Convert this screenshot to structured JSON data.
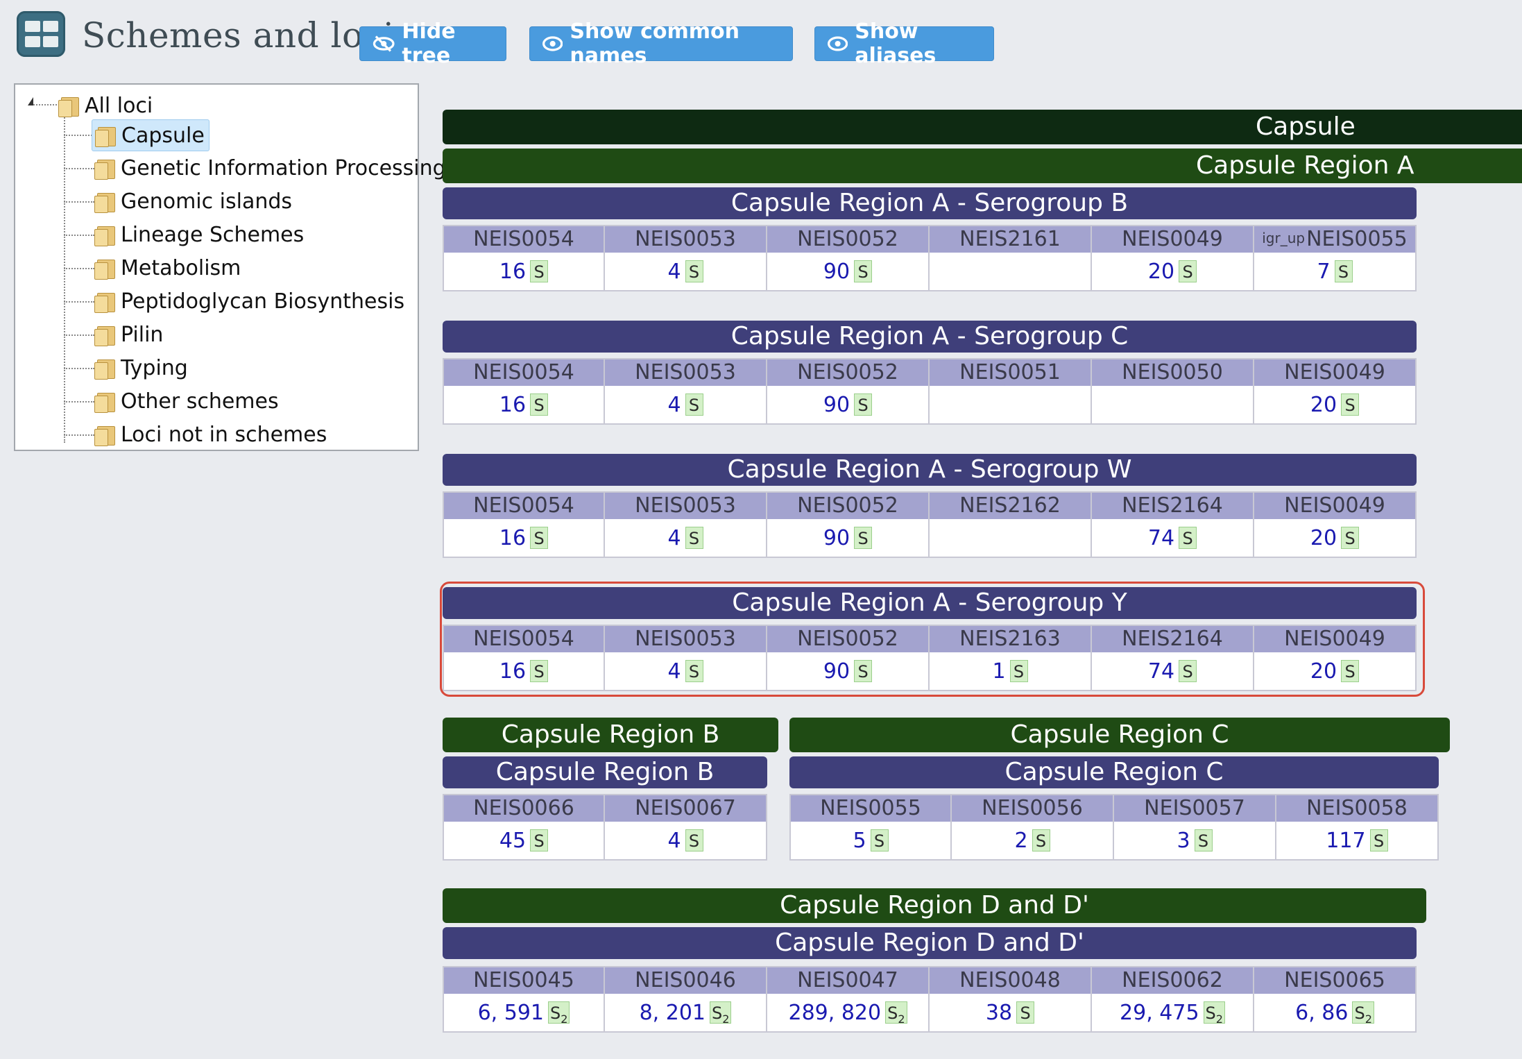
{
  "header": {
    "title": "Schemes and loci",
    "buttons": {
      "hide_tree": "Hide tree",
      "show_common_names": "Show common names",
      "show_aliases": "Show aliases"
    }
  },
  "tree": {
    "root": "All loci",
    "items": [
      {
        "label": "Capsule",
        "selected": true
      },
      {
        "label": "Genetic Information Processing"
      },
      {
        "label": "Genomic islands"
      },
      {
        "label": "Lineage Schemes"
      },
      {
        "label": "Metabolism"
      },
      {
        "label": "Peptidoglycan Biosynthesis"
      },
      {
        "label": "Pilin"
      },
      {
        "label": "Typing"
      },
      {
        "label": "Other schemes"
      },
      {
        "label": "Loci not in schemes"
      }
    ]
  },
  "colors": {
    "dark_bar": "#0e2a12",
    "group_bar": "#1f4b14",
    "scheme_bar": "#3f3f7a",
    "locus_header": "#a3a3cf",
    "link": "#1a1ab0",
    "badge": "#d4f0c8",
    "highlight": "#d84a3b"
  },
  "main": {
    "top_title": "Capsule",
    "region_a": {
      "title": "Capsule Region A",
      "schemes": [
        {
          "title": "Capsule Region A - Serogroup B",
          "loci": [
            {
              "name": "NEIS0054",
              "value": "16",
              "badge": "S"
            },
            {
              "name": "NEIS0053",
              "value": "4",
              "badge": "S"
            },
            {
              "name": "NEIS0052",
              "value": "90",
              "badge": "S"
            },
            {
              "name": "NEIS2161",
              "value": "",
              "badge": ""
            },
            {
              "name": "NEIS0049",
              "value": "20",
              "badge": "S"
            },
            {
              "name": "NEIS0055",
              "prefix": "igr_up",
              "value": "7",
              "badge": "S"
            }
          ]
        },
        {
          "title": "Capsule Region A - Serogroup C",
          "loci": [
            {
              "name": "NEIS0054",
              "value": "16",
              "badge": "S"
            },
            {
              "name": "NEIS0053",
              "value": "4",
              "badge": "S"
            },
            {
              "name": "NEIS0052",
              "value": "90",
              "badge": "S"
            },
            {
              "name": "NEIS0051",
              "value": "",
              "badge": ""
            },
            {
              "name": "NEIS0050",
              "value": "",
              "badge": ""
            },
            {
              "name": "NEIS0049",
              "value": "20",
              "badge": "S"
            }
          ]
        },
        {
          "title": "Capsule Region A - Serogroup W",
          "loci": [
            {
              "name": "NEIS0054",
              "value": "16",
              "badge": "S"
            },
            {
              "name": "NEIS0053",
              "value": "4",
              "badge": "S"
            },
            {
              "name": "NEIS0052",
              "value": "90",
              "badge": "S"
            },
            {
              "name": "NEIS2162",
              "value": "",
              "badge": ""
            },
            {
              "name": "NEIS2164",
              "value": "74",
              "badge": "S"
            },
            {
              "name": "NEIS0049",
              "value": "20",
              "badge": "S"
            }
          ]
        },
        {
          "title": "Capsule Region A - Serogroup Y",
          "loci": [
            {
              "name": "NEIS0054",
              "value": "16",
              "badge": "S"
            },
            {
              "name": "NEIS0053",
              "value": "4",
              "badge": "S"
            },
            {
              "name": "NEIS0052",
              "value": "90",
              "badge": "S"
            },
            {
              "name": "NEIS2163",
              "value": "1",
              "badge": "S"
            },
            {
              "name": "NEIS2164",
              "value": "74",
              "badge": "S"
            },
            {
              "name": "NEIS0049",
              "value": "20",
              "badge": "S"
            }
          ]
        }
      ]
    },
    "region_b": {
      "title": "Capsule Region B",
      "scheme_title": "Capsule Region B",
      "loci": [
        {
          "name": "NEIS0066",
          "value": "45",
          "badge": "S"
        },
        {
          "name": "NEIS0067",
          "value": "4",
          "badge": "S"
        }
      ]
    },
    "region_c": {
      "title": "Capsule Region C",
      "scheme_title": "Capsule Region C",
      "loci": [
        {
          "name": "NEIS0055",
          "value": "5",
          "badge": "S"
        },
        {
          "name": "NEIS0056",
          "value": "2",
          "badge": "S"
        },
        {
          "name": "NEIS0057",
          "value": "3",
          "badge": "S"
        },
        {
          "name": "NEIS0058",
          "value": "117",
          "badge": "S"
        }
      ]
    },
    "region_d": {
      "title": "Capsule Region D and D'",
      "scheme_title": "Capsule Region D and D'",
      "loci": [
        {
          "name": "NEIS0045",
          "value": "6, 591",
          "badge": "S",
          "badge_sub": "2"
        },
        {
          "name": "NEIS0046",
          "value": "8, 201",
          "badge": "S",
          "badge_sub": "2"
        },
        {
          "name": "NEIS0047",
          "value": "289, 820",
          "badge": "S",
          "badge_sub": "2"
        },
        {
          "name": "NEIS0048",
          "value": "38",
          "badge": "S"
        },
        {
          "name": "NEIS0062",
          "value": "29, 475",
          "badge": "S",
          "badge_sub": "2"
        },
        {
          "name": "NEIS0065",
          "value": "6, 86",
          "badge": "S",
          "badge_sub": "2"
        }
      ]
    }
  }
}
